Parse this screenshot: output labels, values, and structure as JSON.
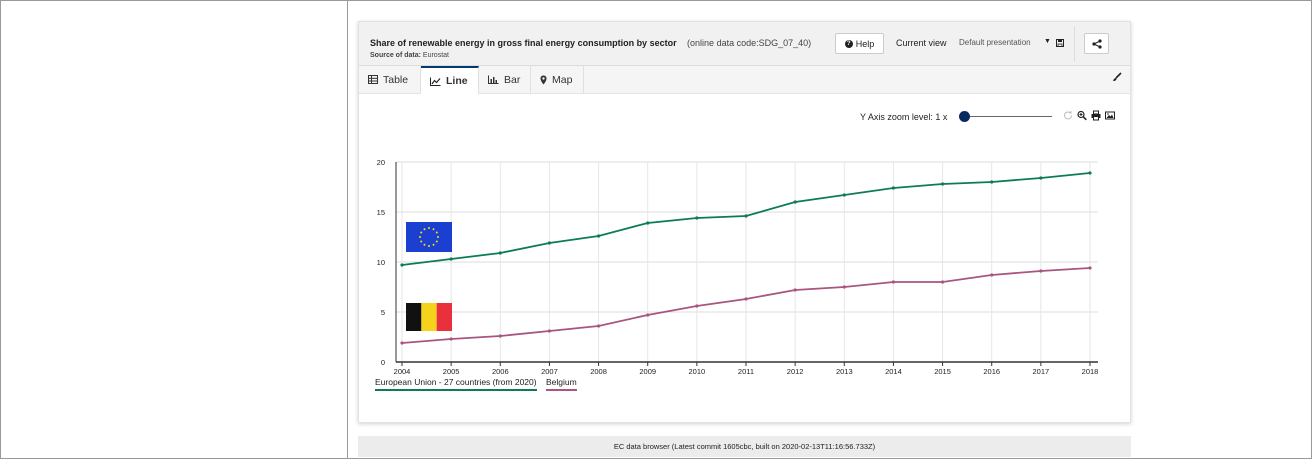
{
  "header": {
    "title": "Share of renewable energy in gross final energy consumption by sector",
    "code": "(online data code:SDG_07_40)",
    "source_label": "Source of data:",
    "source_value": "Eurostat",
    "help_label": "Help",
    "current_view_label": "Current view",
    "view_value": "Default presentation"
  },
  "tabs": [
    {
      "label": "Table",
      "icon": "table-icon"
    },
    {
      "label": "Line",
      "icon": "line-chart-icon"
    },
    {
      "label": "Bar",
      "icon": "bar-chart-icon"
    },
    {
      "label": "Map",
      "icon": "map-marker-icon"
    }
  ],
  "active_tab": "Line",
  "zoom": {
    "label": "Y Axis zoom level: 1 x",
    "level": 1
  },
  "footer": {
    "text": "EC data browser (Latest commit 1605cbc, built on 2020-02-13T11:16:56.733Z)"
  },
  "colors": {
    "eu": "#0e7c53",
    "be": "#a8567f",
    "accent": "#003a70"
  },
  "chart_data": {
    "type": "line",
    "title": "",
    "xlabel": "",
    "ylabel": "",
    "x": [
      "2004",
      "2005",
      "2006",
      "2007",
      "2008",
      "2009",
      "2010",
      "2011",
      "2012",
      "2013",
      "2014",
      "2015",
      "2016",
      "2017",
      "2018"
    ],
    "ylim": [
      0,
      20
    ],
    "yticks": [
      "0",
      "5",
      "10",
      "15",
      "20"
    ],
    "grid": true,
    "legend_position": "bottom-left",
    "series": [
      {
        "name": "European Union - 27 countries (from 2020)",
        "color": "#0e7c53",
        "flag": "eu-flag",
        "values": [
          9.7,
          10.3,
          10.9,
          11.9,
          12.6,
          13.9,
          14.4,
          14.6,
          16.0,
          16.7,
          17.4,
          17.8,
          18.0,
          18.4,
          18.9
        ]
      },
      {
        "name": "Belgium",
        "color": "#a8567f",
        "flag": "belgium-flag",
        "values": [
          1.9,
          2.3,
          2.6,
          3.1,
          3.6,
          4.7,
          5.6,
          6.3,
          7.2,
          7.5,
          8.0,
          8.0,
          8.7,
          9.1,
          9.4
        ]
      }
    ]
  }
}
